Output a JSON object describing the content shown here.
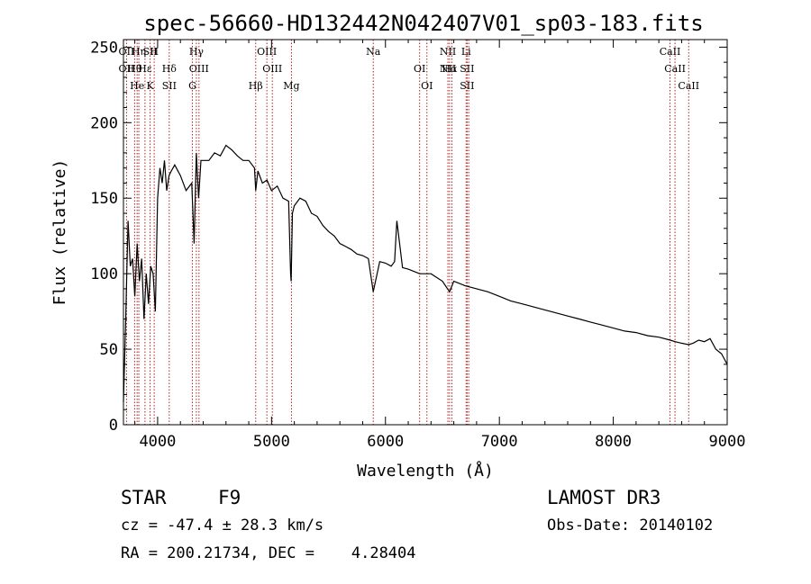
{
  "title": "spec-56660-HD132442N042407V01_sp03-183.fits",
  "chart_data": {
    "type": "line",
    "xlabel": "Wavelength (Å)",
    "ylabel": "Flux (relative)",
    "xlim": [
      3700,
      9000
    ],
    "ylim": [
      0,
      255
    ],
    "xticks": [
      4000,
      5000,
      6000,
      7000,
      8000,
      9000
    ],
    "yticks": [
      0,
      50,
      100,
      150,
      200,
      250
    ],
    "series": [
      {
        "x": [
          3700,
          3720,
          3740,
          3760,
          3780,
          3800,
          3820,
          3840,
          3860,
          3880,
          3900,
          3920,
          3940,
          3960,
          3980,
          4000,
          4020,
          4040,
          4060,
          4080,
          4100,
          4120,
          4150,
          4200,
          4250,
          4300,
          4320,
          4340,
          4360,
          4380,
          4400,
          4450,
          4500,
          4550,
          4600,
          4650,
          4700,
          4750,
          4800,
          4850,
          4861,
          4880,
          4920,
          4960,
          5000,
          5050,
          5100,
          5150,
          5167,
          5172,
          5183,
          5200,
          5250,
          5300,
          5350,
          5400,
          5450,
          5500,
          5550,
          5600,
          5650,
          5700,
          5750,
          5800,
          5850,
          5893,
          5950,
          6000,
          6050,
          6080,
          6100,
          6150,
          6200,
          6300,
          6400,
          6500,
          6563,
          6600,
          6700,
          6800,
          6900,
          7000,
          7100,
          7200,
          7300,
          7400,
          7500,
          7600,
          7700,
          7800,
          7900,
          8000,
          8100,
          8200,
          8300,
          8400,
          8500,
          8542,
          8600,
          8662,
          8700,
          8750,
          8800,
          8850,
          8900,
          8950,
          9000
        ],
        "y": [
          15,
          70,
          135,
          105,
          110,
          85,
          120,
          95,
          110,
          70,
          100,
          80,
          105,
          100,
          75,
          150,
          170,
          160,
          175,
          155,
          165,
          168,
          172,
          165,
          155,
          160,
          120,
          180,
          150,
          175,
          175,
          175,
          180,
          178,
          185,
          182,
          178,
          175,
          175,
          170,
          155,
          168,
          160,
          162,
          155,
          158,
          150,
          148,
          100,
          95,
          140,
          145,
          150,
          148,
          140,
          138,
          132,
          128,
          125,
          120,
          118,
          116,
          113,
          112,
          110,
          88,
          108,
          107,
          105,
          108,
          135,
          104,
          103,
          100,
          100,
          95,
          88,
          95,
          92,
          90,
          88,
          85,
          82,
          80,
          78,
          76,
          74,
          72,
          70,
          68,
          66,
          64,
          62,
          61,
          59,
          58,
          56,
          55,
          54,
          53,
          54,
          56,
          55,
          57,
          50,
          47,
          40
        ]
      }
    ],
    "lines": [
      {
        "x": 3727,
        "labels": [
          "OII",
          "OII"
        ]
      },
      {
        "x": 3798,
        "labels": [
          "Hθ"
        ]
      },
      {
        "x": 3820,
        "labels": [
          "He"
        ]
      },
      {
        "x": 3835,
        "labels": [
          "Hη"
        ]
      },
      {
        "x": 3889,
        "labels": [
          "Hε"
        ]
      },
      {
        "x": 3934,
        "labels": [
          "K",
          "SII"
        ]
      },
      {
        "x": 3970,
        "labels": [
          "H"
        ]
      },
      {
        "x": 4102,
        "labels": [
          "Hδ",
          "SII"
        ]
      },
      {
        "x": 4305,
        "labels": [
          "G"
        ]
      },
      {
        "x": 4340,
        "labels": [
          "Hγ"
        ]
      },
      {
        "x": 4363,
        "labels": [
          "OIII"
        ]
      },
      {
        "x": 4861,
        "labels": [
          "Hβ"
        ]
      },
      {
        "x": 4959,
        "labels": [
          "OIII"
        ]
      },
      {
        "x": 5007,
        "labels": [
          "OIII"
        ]
      },
      {
        "x": 5175,
        "labels": [
          "Mg"
        ]
      },
      {
        "x": 5893,
        "labels": [
          "Na"
        ]
      },
      {
        "x": 6300,
        "labels": [
          "OI"
        ]
      },
      {
        "x": 6364,
        "labels": [
          "OI"
        ]
      },
      {
        "x": 6548,
        "labels": [
          "NII",
          "NII"
        ]
      },
      {
        "x": 6563,
        "labels": [
          "Hα"
        ]
      },
      {
        "x": 6583,
        "labels": []
      },
      {
        "x": 6708,
        "labels": [
          "Li"
        ]
      },
      {
        "x": 6717,
        "labels": [
          "SII",
          "SII"
        ]
      },
      {
        "x": 6731,
        "labels": []
      },
      {
        "x": 8498,
        "labels": [
          "CaII"
        ]
      },
      {
        "x": 8542,
        "labels": [
          "CaII"
        ]
      },
      {
        "x": 8662,
        "labels": [
          "CaII"
        ]
      }
    ],
    "line_color": "#000000",
    "marker_color": "#b22222"
  },
  "info": {
    "class": "STAR",
    "subclass": "F9",
    "survey": "LAMOST DR3",
    "cz": "cz = -47.4 ± 28.3 km/s",
    "obs_date": "Obs-Date: 20140102",
    "coords": "RA = 200.21734, DEC =    4.28404"
  }
}
